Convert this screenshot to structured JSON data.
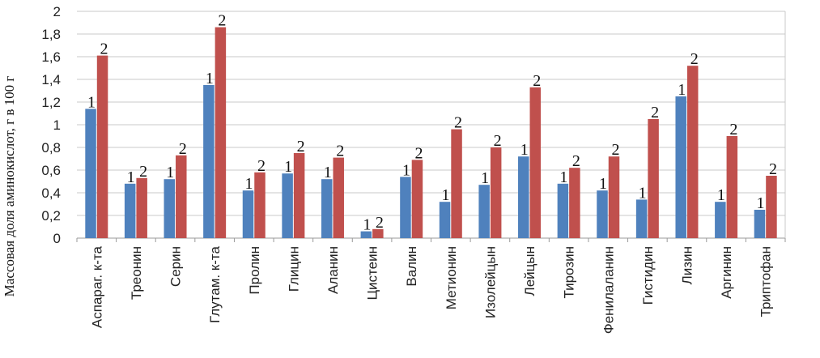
{
  "chart_data": {
    "type": "bar",
    "title": "",
    "xlabel": "",
    "ylabel": "Массовая доля аминокислот, г в 100 г",
    "ylim": [
      0,
      2
    ],
    "yticks": [
      "0",
      "0,2",
      "0,4",
      "0,6",
      "0,8",
      "1",
      "1,2",
      "1,4",
      "1,6",
      "1,8",
      "2"
    ],
    "grid": true,
    "legend": "none",
    "categories": [
      "Аспараг. к-та",
      "Треонин",
      "Серин",
      "Глутам. к-та",
      "Пролин",
      "Глицин",
      "Аланин",
      "Цистеин",
      "Валин",
      "Метионин",
      "Изолейцын",
      "Лейцын",
      "Тирозин",
      "Фенилаланин",
      "Гистидин",
      "Лизин",
      "Аргинин",
      "Триптофан"
    ],
    "series": [
      {
        "name": "",
        "label": "1",
        "color": "#4F81BD",
        "values": [
          1.14,
          0.48,
          0.52,
          1.35,
          0.42,
          0.57,
          0.52,
          0.06,
          0.54,
          0.32,
          0.47,
          0.72,
          0.48,
          0.42,
          0.34,
          1.25,
          0.32,
          0.25
        ]
      },
      {
        "name": "",
        "label": "2",
        "color": "#C0504D",
        "values": [
          1.61,
          0.53,
          0.73,
          1.86,
          0.58,
          0.75,
          0.71,
          0.08,
          0.69,
          0.96,
          0.8,
          1.33,
          0.62,
          0.72,
          1.05,
          1.52,
          0.9,
          0.55
        ]
      }
    ]
  }
}
